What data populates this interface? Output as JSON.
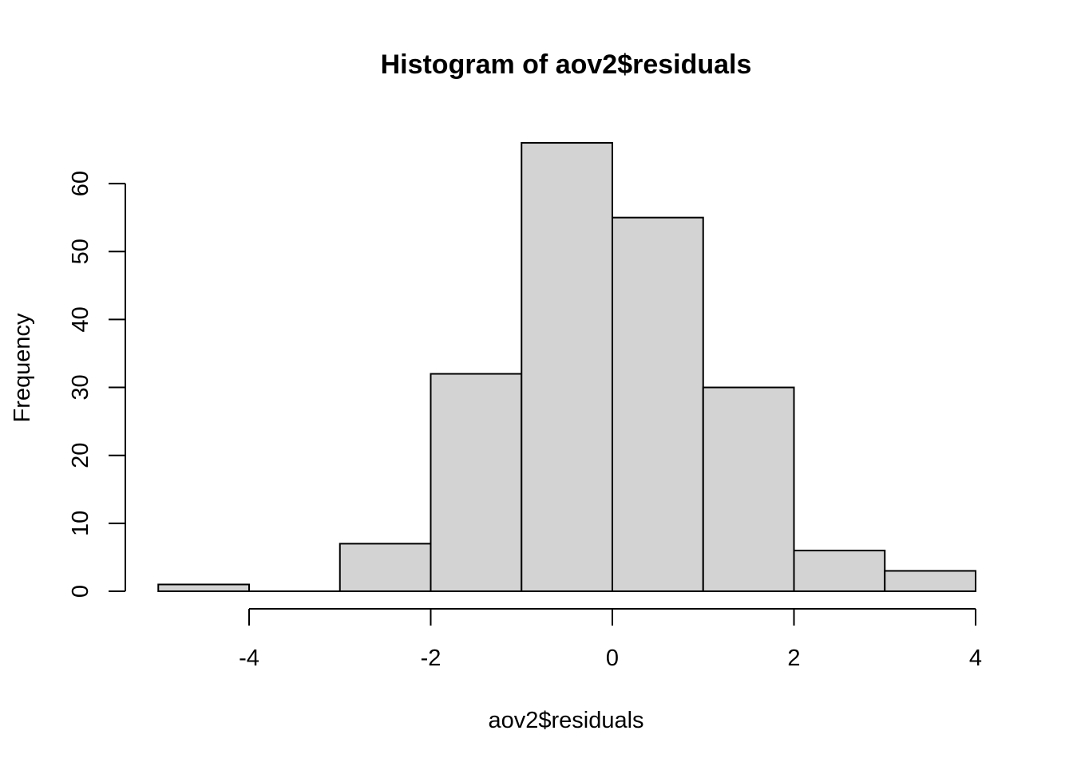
{
  "chart_data": {
    "type": "bar",
    "title": "Histogram of aov2$residuals",
    "xlabel": "aov2$residuals",
    "ylabel": "Frequency",
    "bins": [
      {
        "from": -5,
        "to": -4,
        "count": 1
      },
      {
        "from": -4,
        "to": -3,
        "count": 0
      },
      {
        "from": -3,
        "to": -2,
        "count": 7
      },
      {
        "from": -2,
        "to": -1,
        "count": 32
      },
      {
        "from": -1,
        "to": 0,
        "count": 66
      },
      {
        "from": 0,
        "to": 1,
        "count": 55
      },
      {
        "from": 1,
        "to": 2,
        "count": 30
      },
      {
        "from": 2,
        "to": 3,
        "count": 6
      },
      {
        "from": 3,
        "to": 4,
        "count": 3
      }
    ],
    "xticks": [
      -4,
      -2,
      0,
      2,
      4
    ],
    "xtick_labels": [
      "-4",
      "-2",
      "0",
      "2",
      "4"
    ],
    "yticks": [
      0,
      10,
      20,
      30,
      40,
      50,
      60
    ],
    "ytick_labels": [
      "0",
      "10",
      "20",
      "30",
      "40",
      "50",
      "60"
    ],
    "xlim": [
      -5,
      4
    ],
    "ylim": [
      0,
      66
    ],
    "grid": false,
    "bar_fill": "#d3d3d3",
    "bar_stroke": "#000000"
  }
}
